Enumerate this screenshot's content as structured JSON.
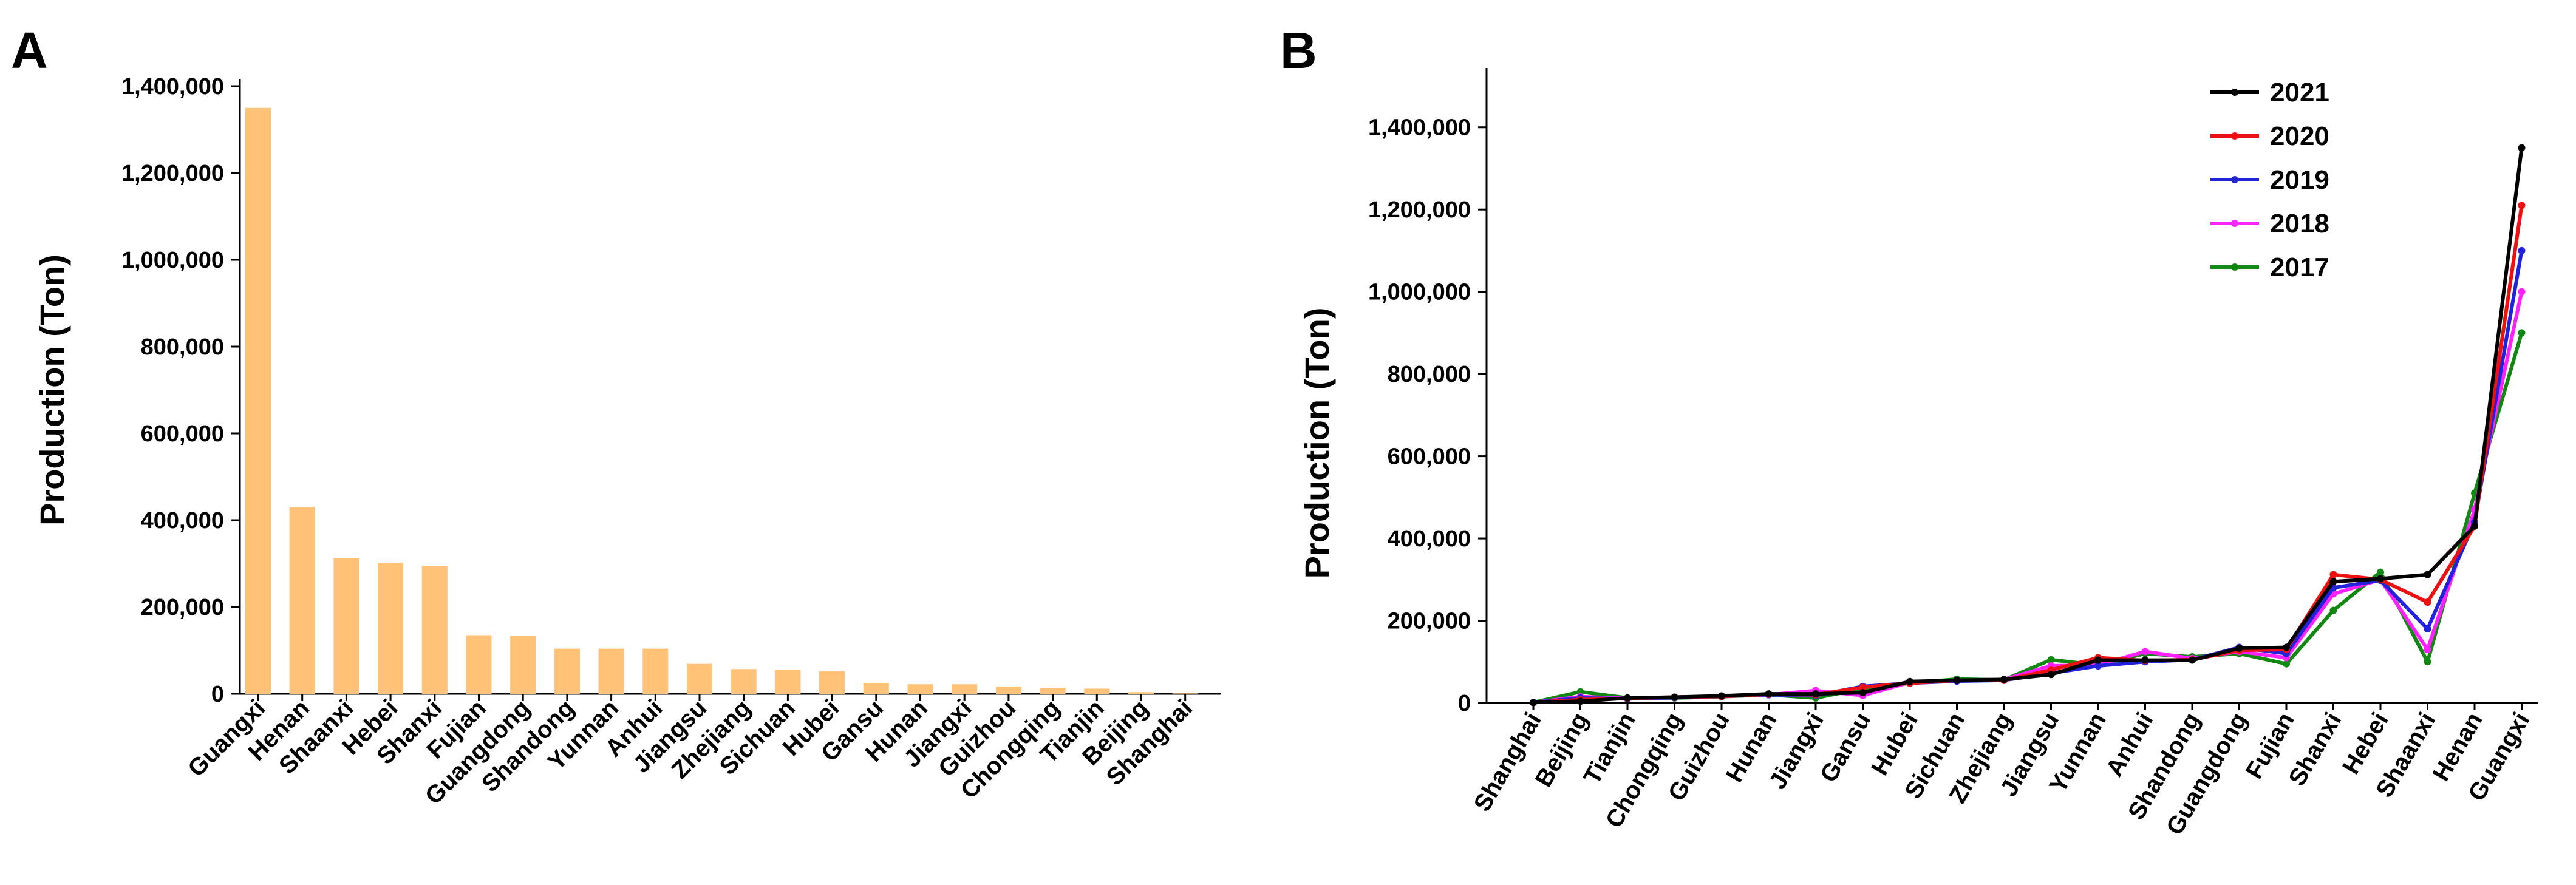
{
  "chart_data": [
    {
      "panel": "A",
      "type": "bar",
      "title": "",
      "xlabel": "",
      "ylabel": "Production (Ton)",
      "ylim": [
        0,
        1400000
      ],
      "yticks": [
        0,
        200000,
        400000,
        600000,
        800000,
        1000000,
        1200000,
        1400000
      ],
      "ytick_labels": [
        "0",
        "200,000",
        "400,000",
        "600,000",
        "800,000",
        "1,000,000",
        "1,200,000",
        "1,400,000"
      ],
      "bar_color": "#ffc277",
      "categories": [
        "Guangxi",
        "Henan",
        "Shaanxi",
        "Hebei",
        "Shanxi",
        "Fujian",
        "Guangdong",
        "Shandong",
        "Yunnan",
        "Anhui",
        "Jiangsu",
        "Zhejiang",
        "Sichuan",
        "Hubei",
        "Gansu",
        "Hunan",
        "Jiangxi",
        "Guizhou",
        "Chongqing",
        "Tianjin",
        "Beijing",
        "Shanghai"
      ],
      "values": [
        1350000,
        430000,
        312000,
        302000,
        295000,
        135000,
        133000,
        104000,
        104000,
        104000,
        69000,
        57000,
        55000,
        52000,
        25000,
        22000,
        22000,
        17000,
        14000,
        12000,
        4000,
        1000
      ]
    },
    {
      "panel": "B",
      "type": "line",
      "title": "",
      "xlabel": "",
      "ylabel": "Production (Ton)",
      "ylim": [
        0,
        1500000
      ],
      "yticks": [
        0,
        200000,
        400000,
        600000,
        800000,
        1000000,
        1200000,
        1400000
      ],
      "ytick_labels": [
        "0",
        "200,000",
        "400,000",
        "600,000",
        "800,000",
        "1,000,000",
        "1,200,000",
        "1,400,000"
      ],
      "legend_position": "top-right",
      "categories": [
        "Shanghai",
        "Beijing",
        "Tianjin",
        "Chongqing",
        "Guizhou",
        "Hunan",
        "Jiangxi",
        "Gansu",
        "Hubei",
        "Sichuan",
        "Zhejiang",
        "Jiangsu",
        "Yunnan",
        "Anhui",
        "Shandong",
        "Guangdong",
        "Fujian",
        "Shanxi",
        "Hebei",
        "Shaanxi",
        "Henan",
        "Guangxi"
      ],
      "series": [
        {
          "name": "2021",
          "color": "#000000",
          "values": [
            1000,
            4000,
            12000,
            14000,
            17000,
            22000,
            22000,
            25000,
            52000,
            55000,
            57000,
            69000,
            104000,
            104000,
            104000,
            133000,
            135000,
            295000,
            302000,
            312000,
            430000,
            1350000
          ]
        },
        {
          "name": "2020",
          "color": "#ee1111",
          "values": [
            1000,
            8000,
            11000,
            14000,
            16000,
            21000,
            20000,
            38000,
            48000,
            55000,
            55000,
            80000,
            110000,
            103000,
            105000,
            128000,
            130000,
            312000,
            300000,
            245000,
            430000,
            1210000
          ]
        },
        {
          "name": "2019",
          "color": "#2222dd",
          "values": [
            1000,
            12000,
            10000,
            13000,
            17000,
            20000,
            18000,
            40000,
            48000,
            53000,
            55000,
            72000,
            90000,
            100000,
            105000,
            135000,
            120000,
            280000,
            298000,
            180000,
            440000,
            1100000
          ]
        },
        {
          "name": "2018",
          "color": "#ff22ff",
          "values": [
            1000,
            15000,
            11000,
            13000,
            16000,
            20000,
            30000,
            18000,
            50000,
            54000,
            57000,
            90000,
            92000,
            125000,
            108000,
            125000,
            110000,
            265000,
            300000,
            130000,
            470000,
            1000000
          ]
        },
        {
          "name": "2017",
          "color": "#118811",
          "values": [
            1000,
            27000,
            12000,
            12000,
            15000,
            20000,
            12000,
            35000,
            48000,
            58000,
            56000,
            105000,
            92000,
            120000,
            112000,
            120000,
            95000,
            225000,
            318000,
            100000,
            510000,
            900000
          ]
        }
      ]
    }
  ],
  "panels": {
    "a_label": "A",
    "b_label": "B"
  }
}
